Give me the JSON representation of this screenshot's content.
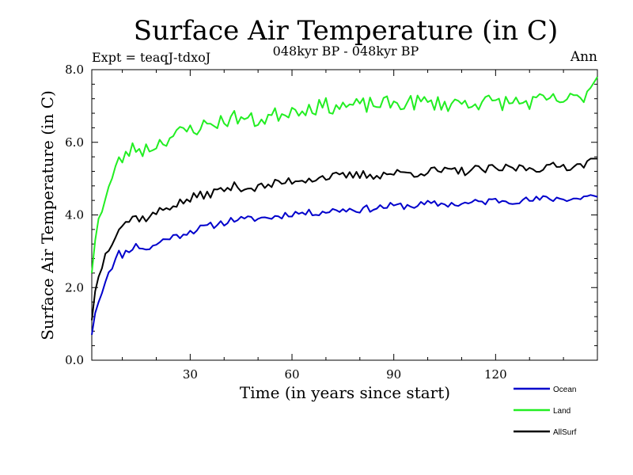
{
  "chart_data": {
    "type": "line",
    "title": "Surface Air Temperature (in C)",
    "subtitle": "048kyr BP - 048kyr BP",
    "experiment_label": "Expt = teaqJ-tdxoJ",
    "period_label": "Ann",
    "xlabel": "Time (in years since start)",
    "ylabel": "Surface Air Temperature (in C)",
    "xlim": [
      1,
      150
    ],
    "ylim": [
      0,
      8
    ],
    "x_ticks": [
      30,
      60,
      90,
      120
    ],
    "x_tick_labels": [
      "30",
      "60",
      "90",
      "120"
    ],
    "y_ticks": [
      0,
      2,
      4,
      6,
      8
    ],
    "y_tick_labels": [
      "0.0",
      "2.0",
      "4.0",
      "6.0",
      "8.0"
    ],
    "grid": false,
    "legend_position": "bottom-right",
    "series": [
      {
        "name": "Ocean",
        "color": "#0000cc",
        "anchors": [
          [
            1,
            0.7
          ],
          [
            2,
            1.3
          ],
          [
            3,
            1.6
          ],
          [
            4,
            1.9
          ],
          [
            5,
            2.2
          ],
          [
            6,
            2.45
          ],
          [
            7,
            2.6
          ],
          [
            8,
            2.75
          ],
          [
            9,
            2.95
          ],
          [
            10,
            2.9
          ],
          [
            12,
            3.05
          ],
          [
            14,
            3.15
          ],
          [
            16,
            3.1
          ],
          [
            18,
            3.05
          ],
          [
            20,
            3.2
          ],
          [
            22,
            3.3
          ],
          [
            24,
            3.4
          ],
          [
            26,
            3.4
          ],
          [
            28,
            3.5
          ],
          [
            30,
            3.55
          ],
          [
            32,
            3.6
          ],
          [
            34,
            3.65
          ],
          [
            36,
            3.7
          ],
          [
            38,
            3.75
          ],
          [
            40,
            3.8
          ],
          [
            42,
            3.85
          ],
          [
            44,
            3.9
          ],
          [
            46,
            3.85
          ],
          [
            48,
            3.9
          ],
          [
            50,
            3.9
          ],
          [
            55,
            3.95
          ],
          [
            60,
            4.05
          ],
          [
            65,
            4.05
          ],
          [
            70,
            4.1
          ],
          [
            75,
            4.15
          ],
          [
            80,
            4.15
          ],
          [
            85,
            4.2
          ],
          [
            90,
            4.25
          ],
          [
            95,
            4.25
          ],
          [
            100,
            4.3
          ],
          [
            105,
            4.3
          ],
          [
            110,
            4.3
          ],
          [
            115,
            4.35
          ],
          [
            120,
            4.4
          ],
          [
            125,
            4.4
          ],
          [
            130,
            4.4
          ],
          [
            135,
            4.45
          ],
          [
            140,
            4.45
          ],
          [
            145,
            4.45
          ],
          [
            148,
            4.55
          ],
          [
            150,
            4.5
          ]
        ],
        "noise": 0.1,
        "seed": 11
      },
      {
        "name": "Land",
        "color": "#22ee22",
        "anchors": [
          [
            1,
            2.4
          ],
          [
            2,
            3.3
          ],
          [
            3,
            3.9
          ],
          [
            4,
            4.2
          ],
          [
            5,
            4.5
          ],
          [
            6,
            4.75
          ],
          [
            7,
            5.0
          ],
          [
            8,
            5.25
          ],
          [
            9,
            5.45
          ],
          [
            10,
            5.55
          ],
          [
            12,
            5.75
          ],
          [
            14,
            5.85
          ],
          [
            16,
            5.8
          ],
          [
            18,
            5.85
          ],
          [
            20,
            5.95
          ],
          [
            22,
            6.05
          ],
          [
            24,
            6.15
          ],
          [
            26,
            6.2
          ],
          [
            28,
            6.3
          ],
          [
            30,
            6.35
          ],
          [
            32,
            6.4
          ],
          [
            34,
            6.45
          ],
          [
            36,
            6.5
          ],
          [
            38,
            6.55
          ],
          [
            40,
            6.6
          ],
          [
            42,
            6.65
          ],
          [
            44,
            6.7
          ],
          [
            46,
            6.65
          ],
          [
            48,
            6.6
          ],
          [
            50,
            6.6
          ],
          [
            55,
            6.75
          ],
          [
            60,
            6.9
          ],
          [
            65,
            6.95
          ],
          [
            70,
            7.0
          ],
          [
            75,
            7.0
          ],
          [
            80,
            7.0
          ],
          [
            85,
            7.05
          ],
          [
            90,
            7.05
          ],
          [
            95,
            7.1
          ],
          [
            100,
            7.1
          ],
          [
            105,
            7.05
          ],
          [
            110,
            7.1
          ],
          [
            115,
            7.1
          ],
          [
            120,
            7.1
          ],
          [
            125,
            7.1
          ],
          [
            130,
            7.1
          ],
          [
            135,
            7.15
          ],
          [
            140,
            7.15
          ],
          [
            145,
            7.2
          ],
          [
            148,
            7.5
          ],
          [
            150,
            7.8
          ]
        ],
        "noise": 0.22,
        "seed": 23
      },
      {
        "name": "AllSurf",
        "color": "#000000",
        "anchors": [
          [
            1,
            1.1
          ],
          [
            2,
            1.9
          ],
          [
            3,
            2.3
          ],
          [
            4,
            2.6
          ],
          [
            5,
            2.9
          ],
          [
            6,
            3.1
          ],
          [
            7,
            3.3
          ],
          [
            8,
            3.5
          ],
          [
            9,
            3.65
          ],
          [
            10,
            3.75
          ],
          [
            12,
            3.85
          ],
          [
            14,
            3.95
          ],
          [
            16,
            3.9
          ],
          [
            18,
            3.95
          ],
          [
            20,
            4.05
          ],
          [
            22,
            4.15
          ],
          [
            24,
            4.25
          ],
          [
            26,
            4.3
          ],
          [
            28,
            4.35
          ],
          [
            30,
            4.45
          ],
          [
            32,
            4.5
          ],
          [
            34,
            4.55
          ],
          [
            36,
            4.6
          ],
          [
            38,
            4.65
          ],
          [
            40,
            4.7
          ],
          [
            42,
            4.75
          ],
          [
            44,
            4.8
          ],
          [
            46,
            4.75
          ],
          [
            48,
            4.75
          ],
          [
            50,
            4.75
          ],
          [
            55,
            4.85
          ],
          [
            60,
            4.95
          ],
          [
            65,
            5.0
          ],
          [
            70,
            5.05
          ],
          [
            75,
            5.05
          ],
          [
            80,
            5.1
          ],
          [
            85,
            5.1
          ],
          [
            90,
            5.15
          ],
          [
            95,
            5.15
          ],
          [
            100,
            5.2
          ],
          [
            105,
            5.2
          ],
          [
            110,
            5.2
          ],
          [
            115,
            5.25
          ],
          [
            120,
            5.25
          ],
          [
            125,
            5.3
          ],
          [
            130,
            5.3
          ],
          [
            135,
            5.3
          ],
          [
            140,
            5.35
          ],
          [
            145,
            5.35
          ],
          [
            148,
            5.55
          ],
          [
            150,
            5.55
          ]
        ],
        "noise": 0.13,
        "seed": 37
      }
    ]
  }
}
